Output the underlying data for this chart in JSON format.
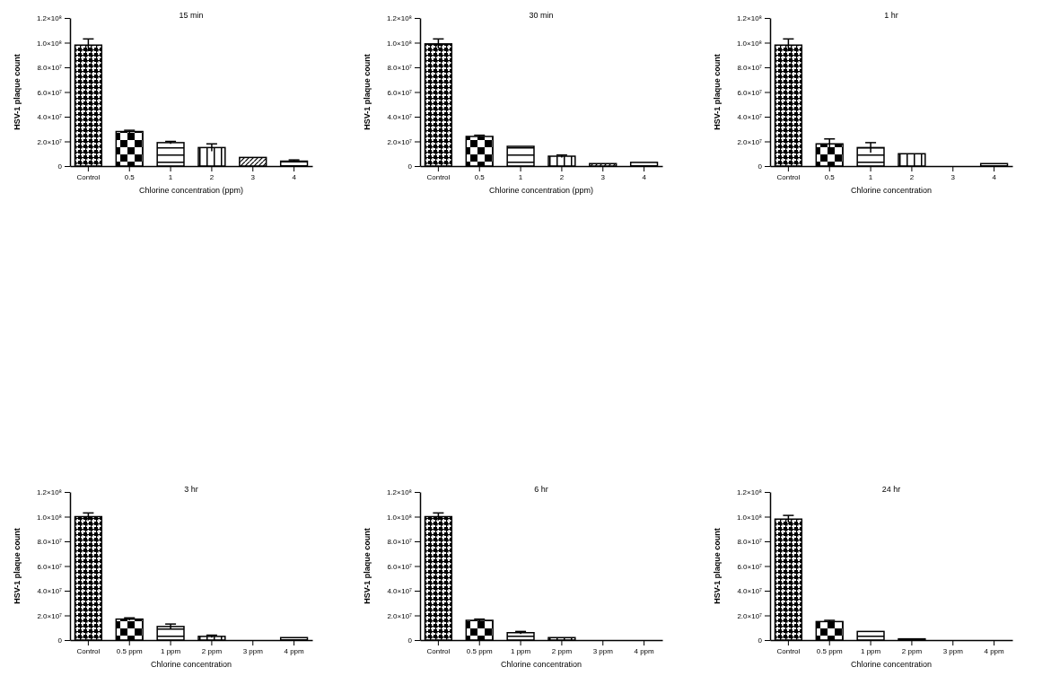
{
  "chart_data": [
    {
      "type": "bar",
      "title": "15 min",
      "xlabel": "Chlorine concentration (ppm)",
      "ylabel": "HSV-1 plaque count",
      "categories": [
        "Control",
        "0.5",
        "1",
        "2",
        "3",
        "4"
      ],
      "values": [
        98000000,
        28000000,
        19000000,
        15000000,
        7000000,
        4000000
      ],
      "errors": [
        5000000,
        1000000,
        1000000,
        3000000,
        null,
        1000000
      ],
      "colors": [
        "#000000",
        "#000000",
        "#000000",
        "#000000",
        "#000000",
        "#000000"
      ],
      "ylim": [
        0,
        120000000
      ],
      "yticks": [
        {
          "value": 0,
          "label": "0"
        },
        {
          "value": 20000000,
          "label": "2.0×10⁷"
        },
        {
          "value": 40000000,
          "label": "4.0×10⁷"
        },
        {
          "value": 60000000,
          "label": "6.0×10⁷"
        },
        {
          "value": 80000000,
          "label": "8.0×10⁷"
        },
        {
          "value": 100000000,
          "label": "1.0×10⁸"
        },
        {
          "value": 120000000,
          "label": "1.2×10⁸"
        }
      ]
    },
    {
      "type": "bar",
      "title": "30 min",
      "xlabel": "Chlorine concentration (ppm)",
      "ylabel": "HSV-1 plaque count",
      "categories": [
        "Control",
        "0.5",
        "1",
        "2",
        "3",
        "4"
      ],
      "values": [
        99000000,
        24000000,
        16000000,
        8000000,
        2000000,
        3000000
      ],
      "errors": [
        4000000,
        1000000,
        null,
        1000000,
        null,
        null
      ],
      "colors": [
        "#000000",
        "#000000",
        "#000000",
        "#000000",
        "#000000",
        "#000000"
      ],
      "ylim": [
        0,
        120000000
      ],
      "yticks": [
        {
          "value": 0,
          "label": "0"
        },
        {
          "value": 20000000,
          "label": "2.0×10⁷"
        },
        {
          "value": 40000000,
          "label": "4.0×10⁷"
        },
        {
          "value": 60000000,
          "label": "6.0×10⁷"
        },
        {
          "value": 80000000,
          "label": "8.0×10⁷"
        },
        {
          "value": 100000000,
          "label": "1.0×10⁸"
        },
        {
          "value": 120000000,
          "label": "1.2×10⁸"
        }
      ]
    },
    {
      "type": "bar",
      "title": "1 hr",
      "xlabel": "Chlorine concentration",
      "ylabel": "HSV-1 plaque count",
      "categories": [
        "Control",
        "0.5",
        "1",
        "2",
        "3",
        "4"
      ],
      "values": [
        98000000,
        18000000,
        15000000,
        10000000,
        0,
        2000000
      ],
      "errors": [
        5000000,
        4000000,
        4000000,
        null,
        null,
        null
      ],
      "colors": [
        "#000000",
        "#000000",
        "#000000",
        "#000000",
        "#000000",
        "#000000"
      ],
      "ylim": [
        0,
        120000000
      ],
      "yticks": [
        {
          "value": 0,
          "label": "0"
        },
        {
          "value": 20000000,
          "label": "2.0×10⁷"
        },
        {
          "value": 40000000,
          "label": "4.0×10⁷"
        },
        {
          "value": 60000000,
          "label": "6.0×10⁷"
        },
        {
          "value": 80000000,
          "label": "8.0×10⁷"
        },
        {
          "value": 100000000,
          "label": "1.0×10⁸"
        },
        {
          "value": 120000000,
          "label": "1.2×10⁸"
        }
      ]
    },
    {
      "type": "bar",
      "title": "3 hr",
      "xlabel": "Chlorine concentration",
      "ylabel": "HSV-1 plaque count",
      "categories": [
        "Control",
        "0.5 ppm",
        "1 ppm",
        "2 ppm",
        "3 ppm",
        "4 ppm"
      ],
      "values": [
        100000000,
        17000000,
        11000000,
        3000000,
        0,
        2000000
      ],
      "errors": [
        3000000,
        1000000,
        2000000,
        1000000,
        null,
        null
      ],
      "colors": [
        "#000000",
        "#000000",
        "#000000",
        "#000000",
        "#000000",
        "#000000"
      ],
      "ylim": [
        0,
        120000000
      ],
      "yticks": [
        {
          "value": 0,
          "label": "0"
        },
        {
          "value": 20000000,
          "label": "2.0×10⁷"
        },
        {
          "value": 40000000,
          "label": "4.0×10⁷"
        },
        {
          "value": 60000000,
          "label": "6.0×10⁷"
        },
        {
          "value": 80000000,
          "label": "8.0×10⁷"
        },
        {
          "value": 100000000,
          "label": "1.0×10⁸"
        },
        {
          "value": 120000000,
          "label": "1.2×10⁸"
        }
      ]
    },
    {
      "type": "bar",
      "title": "6 hr",
      "xlabel": "Chlorine concentration",
      "ylabel": "HSV-1 plaque count",
      "categories": [
        "Control",
        "0.5 ppm",
        "1 ppm",
        "2 ppm",
        "3 ppm",
        "4 ppm"
      ],
      "values": [
        100000000,
        16000000,
        6000000,
        2000000,
        0,
        0
      ],
      "errors": [
        3000000,
        1000000,
        1000000,
        null,
        null,
        null
      ],
      "colors": [
        "#000000",
        "#000000",
        "#000000",
        "#000000",
        "#000000",
        "#000000"
      ],
      "ylim": [
        0,
        120000000
      ],
      "yticks": [
        {
          "value": 0,
          "label": "0"
        },
        {
          "value": 20000000,
          "label": "2.0×10⁷"
        },
        {
          "value": 40000000,
          "label": "4.0×10⁷"
        },
        {
          "value": 60000000,
          "label": "6.0×10⁷"
        },
        {
          "value": 80000000,
          "label": "8.0×10⁷"
        },
        {
          "value": 100000000,
          "label": "1.0×10⁸"
        },
        {
          "value": 120000000,
          "label": "1.2×10⁸"
        }
      ]
    },
    {
      "type": "bar",
      "title": "24 hr",
      "xlabel": "Chlorine concentration",
      "ylabel": "HSV-1 plaque count",
      "categories": [
        "Control",
        "0.5 ppm",
        "1 ppm",
        "2 ppm",
        "3 ppm",
        "4 ppm"
      ],
      "values": [
        98000000,
        15000000,
        7000000,
        1000000,
        0,
        0
      ],
      "errors": [
        3000000,
        1000000,
        null,
        null,
        null,
        null
      ],
      "colors": [
        "#000000",
        "#000000",
        "#000000",
        "#000000",
        "#000000",
        "#000000"
      ],
      "ylim": [
        0,
        120000000
      ],
      "yticks": [
        {
          "value": 0,
          "label": "0"
        },
        {
          "value": 20000000,
          "label": "2.0×10⁷"
        },
        {
          "value": 40000000,
          "label": "4.0×10⁷"
        },
        {
          "value": 60000000,
          "label": "6.0×10⁷"
        },
        {
          "value": 80000000,
          "label": "8.0×10⁷"
        },
        {
          "value": 100000000,
          "label": "1.0×10⁸"
        },
        {
          "value": 120000000,
          "label": "1.2×10⁸"
        }
      ]
    }
  ]
}
